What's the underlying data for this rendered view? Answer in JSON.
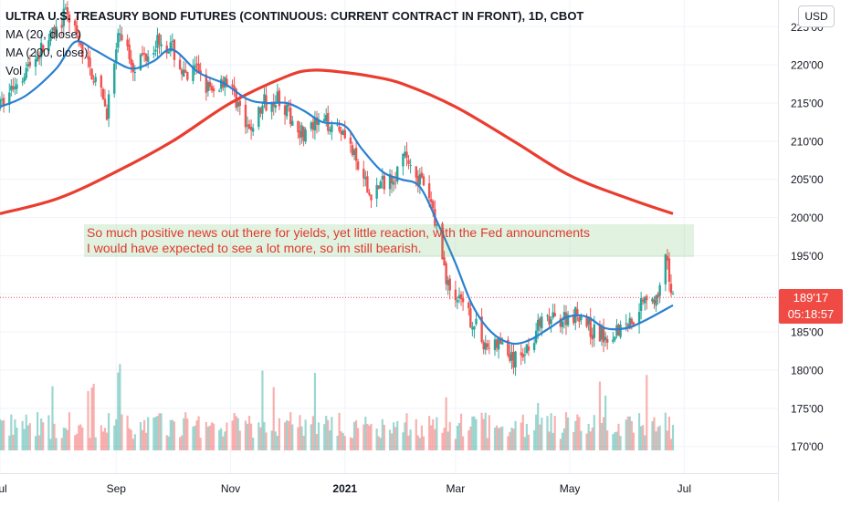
{
  "header": {
    "title": "ULTRA U.S. TREASURY BOND FUTURES (CONTINUOUS: CURRENT CONTRACT IN FRONT), 1D, CBOT",
    "indicators": [
      "MA (20, close)",
      "MA (200, close)",
      "Vol"
    ]
  },
  "currency_button": "USD",
  "annotation": {
    "line1": "So much positive news out there for yields, yet little reaction, with the Fed announcments",
    "line2": "I would have expected to see a lot more, so im still bearish."
  },
  "price_tag": {
    "price": "189'17",
    "countdown": "05:18:57"
  },
  "colors": {
    "up": "#26a69a",
    "down": "#ef5350",
    "ma20": "#2a80d0",
    "ma200": "#ea3d2f",
    "annotation_text": "#e0392b"
  },
  "chart_data": {
    "type": "candlestick",
    "title": "ULTRA U.S. TREASURY BOND FUTURES (CONTINUOUS: CURRENT CONTRACT IN FRONT), 1D, CBOT",
    "y_ticks": [
      "225'00",
      "220'00",
      "215'00",
      "210'00",
      "205'00",
      "200'00",
      "195'00",
      "190'00",
      "185'00",
      "180'00",
      "175'00",
      "170'00"
    ],
    "y_tick_values": [
      225,
      220,
      215,
      210,
      205,
      200,
      195,
      190,
      185,
      180,
      175,
      170
    ],
    "ylim": [
      166.5,
      228.5
    ],
    "x_ticks": [
      "Jul",
      "Sep",
      "Nov",
      "2021",
      "Mar",
      "May",
      "Jul"
    ],
    "x_tick_dates": [
      "2020-07-01",
      "2020-09-01",
      "2020-11-01",
      "2021-01-01",
      "2021-03-01",
      "2021-05-01",
      "2021-07-01"
    ],
    "xlim": [
      "2020-07-01",
      "2021-08-20"
    ],
    "last_price": 189.53,
    "price_anchors": [
      [
        "2020-07-01",
        214.5
      ],
      [
        "2020-07-10",
        218
      ],
      [
        "2020-07-20",
        221
      ],
      [
        "2020-07-31",
        224.5
      ],
      [
        "2020-08-06",
        227
      ],
      [
        "2020-08-13",
        222
      ],
      [
        "2020-08-19",
        219
      ],
      [
        "2020-08-27",
        214
      ],
      [
        "2020-09-03",
        224.5
      ],
      [
        "2020-09-10",
        220
      ],
      [
        "2020-09-17",
        221.5
      ],
      [
        "2020-09-24",
        223.5
      ],
      [
        "2020-10-01",
        222
      ],
      [
        "2020-10-08",
        218
      ],
      [
        "2020-10-15",
        219.5
      ],
      [
        "2020-10-22",
        216
      ],
      [
        "2020-10-29",
        218.5
      ],
      [
        "2020-11-05",
        215
      ],
      [
        "2020-11-10",
        211
      ],
      [
        "2020-11-19",
        215
      ],
      [
        "2020-11-26",
        216
      ],
      [
        "2020-12-03",
        213
      ],
      [
        "2020-12-10",
        211
      ],
      [
        "2020-12-17",
        212
      ],
      [
        "2020-12-24",
        212.5
      ],
      [
        "2021-01-01",
        211.5
      ],
      [
        "2021-01-07",
        207
      ],
      [
        "2021-01-14",
        203
      ],
      [
        "2021-01-21",
        204.5
      ],
      [
        "2021-01-28",
        206
      ],
      [
        "2021-02-03",
        208
      ],
      [
        "2021-02-10",
        205
      ],
      [
        "2021-02-17",
        201
      ],
      [
        "2021-02-25",
        191
      ],
      [
        "2021-03-04",
        188.5
      ],
      [
        "2021-03-11",
        186
      ],
      [
        "2021-03-18",
        183
      ],
      [
        "2021-03-25",
        183.5
      ],
      [
        "2021-04-01",
        181
      ],
      [
        "2021-04-08",
        183
      ],
      [
        "2021-04-15",
        186
      ],
      [
        "2021-04-22",
        186.5
      ],
      [
        "2021-04-29",
        187
      ],
      [
        "2021-05-06",
        187.5
      ],
      [
        "2021-05-13",
        185
      ],
      [
        "2021-05-20",
        184.5
      ],
      [
        "2021-05-27",
        185.5
      ],
      [
        "2021-06-03",
        186.5
      ],
      [
        "2021-06-10",
        190
      ],
      [
        "2021-06-17",
        189
      ],
      [
        "2021-06-21",
        194.5
      ],
      [
        "2021-06-25",
        189.5
      ]
    ],
    "series": [
      {
        "name": "MA (20, close)",
        "points": [
          [
            "2020-07-01",
            214.5
          ],
          [
            "2020-07-15",
            216
          ],
          [
            "2020-07-31",
            219.5
          ],
          [
            "2020-08-10",
            223
          ],
          [
            "2020-08-20",
            222
          ],
          [
            "2020-08-31",
            220.5
          ],
          [
            "2020-09-10",
            219.5
          ],
          [
            "2020-09-21",
            220.5
          ],
          [
            "2020-10-01",
            222
          ],
          [
            "2020-10-15",
            219
          ],
          [
            "2020-10-29",
            217.5
          ],
          [
            "2020-11-10",
            215.5
          ],
          [
            "2020-11-20",
            215
          ],
          [
            "2020-12-01",
            215
          ],
          [
            "2020-12-10",
            214
          ],
          [
            "2020-12-20",
            212.5
          ],
          [
            "2021-01-01",
            212
          ],
          [
            "2021-01-10",
            209
          ],
          [
            "2021-01-21",
            206
          ],
          [
            "2021-01-31",
            205
          ],
          [
            "2021-02-10",
            204
          ],
          [
            "2021-02-20",
            199
          ],
          [
            "2021-03-01",
            194
          ],
          [
            "2021-03-10",
            188.5
          ],
          [
            "2021-03-20",
            185
          ],
          [
            "2021-03-31",
            183.5
          ],
          [
            "2021-04-10",
            184
          ],
          [
            "2021-04-20",
            185.5
          ],
          [
            "2021-04-30",
            187
          ],
          [
            "2021-05-10",
            187
          ],
          [
            "2021-05-20",
            185.5
          ],
          [
            "2021-05-31",
            185.5
          ],
          [
            "2021-06-10",
            186.5
          ],
          [
            "2021-06-25",
            188.5
          ]
        ]
      },
      {
        "name": "MA (200, close)",
        "points": [
          [
            "2020-07-01",
            200.5
          ],
          [
            "2020-08-01",
            202.5
          ],
          [
            "2020-09-01",
            206
          ],
          [
            "2020-10-01",
            210
          ],
          [
            "2020-11-01",
            215
          ],
          [
            "2020-12-01",
            218.5
          ],
          [
            "2020-12-15",
            219.3
          ],
          [
            "2021-01-01",
            219
          ],
          [
            "2021-01-15",
            218.5
          ],
          [
            "2021-02-01",
            217.5
          ],
          [
            "2021-03-01",
            214.5
          ],
          [
            "2021-04-01",
            210
          ],
          [
            "2021-05-01",
            205.5
          ],
          [
            "2021-06-01",
            202.5
          ],
          [
            "2021-06-25",
            200.5
          ]
        ]
      }
    ],
    "volume_range": [
      0,
      1
    ]
  }
}
